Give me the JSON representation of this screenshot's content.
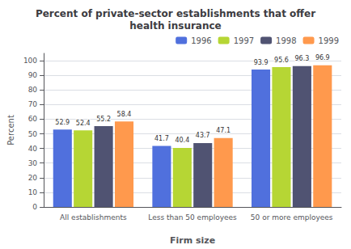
{
  "chart_data": {
    "type": "bar",
    "title": "Percent of private-sector establishments that offer\nhealth insurance",
    "xlabel": "Firm size",
    "ylabel": "Percent",
    "categories": [
      "All establishments",
      "Less than 50 employees",
      "50 or more employees"
    ],
    "series": [
      {
        "name": "1996",
        "values": [
          52.9,
          41.7,
          93.9
        ]
      },
      {
        "name": "1997",
        "values": [
          52.4,
          40.4,
          95.6
        ]
      },
      {
        "name": "1998",
        "values": [
          55.2,
          43.7,
          96.3
        ]
      },
      {
        "name": "1999",
        "values": [
          58.4,
          47.1,
          96.9
        ]
      }
    ],
    "ylim": [
      0,
      105
    ],
    "yticks": [
      0,
      10,
      20,
      30,
      40,
      50,
      60,
      70,
      80,
      90,
      100
    ],
    "grid": true,
    "legend": "upper right",
    "data_labels": true
  }
}
